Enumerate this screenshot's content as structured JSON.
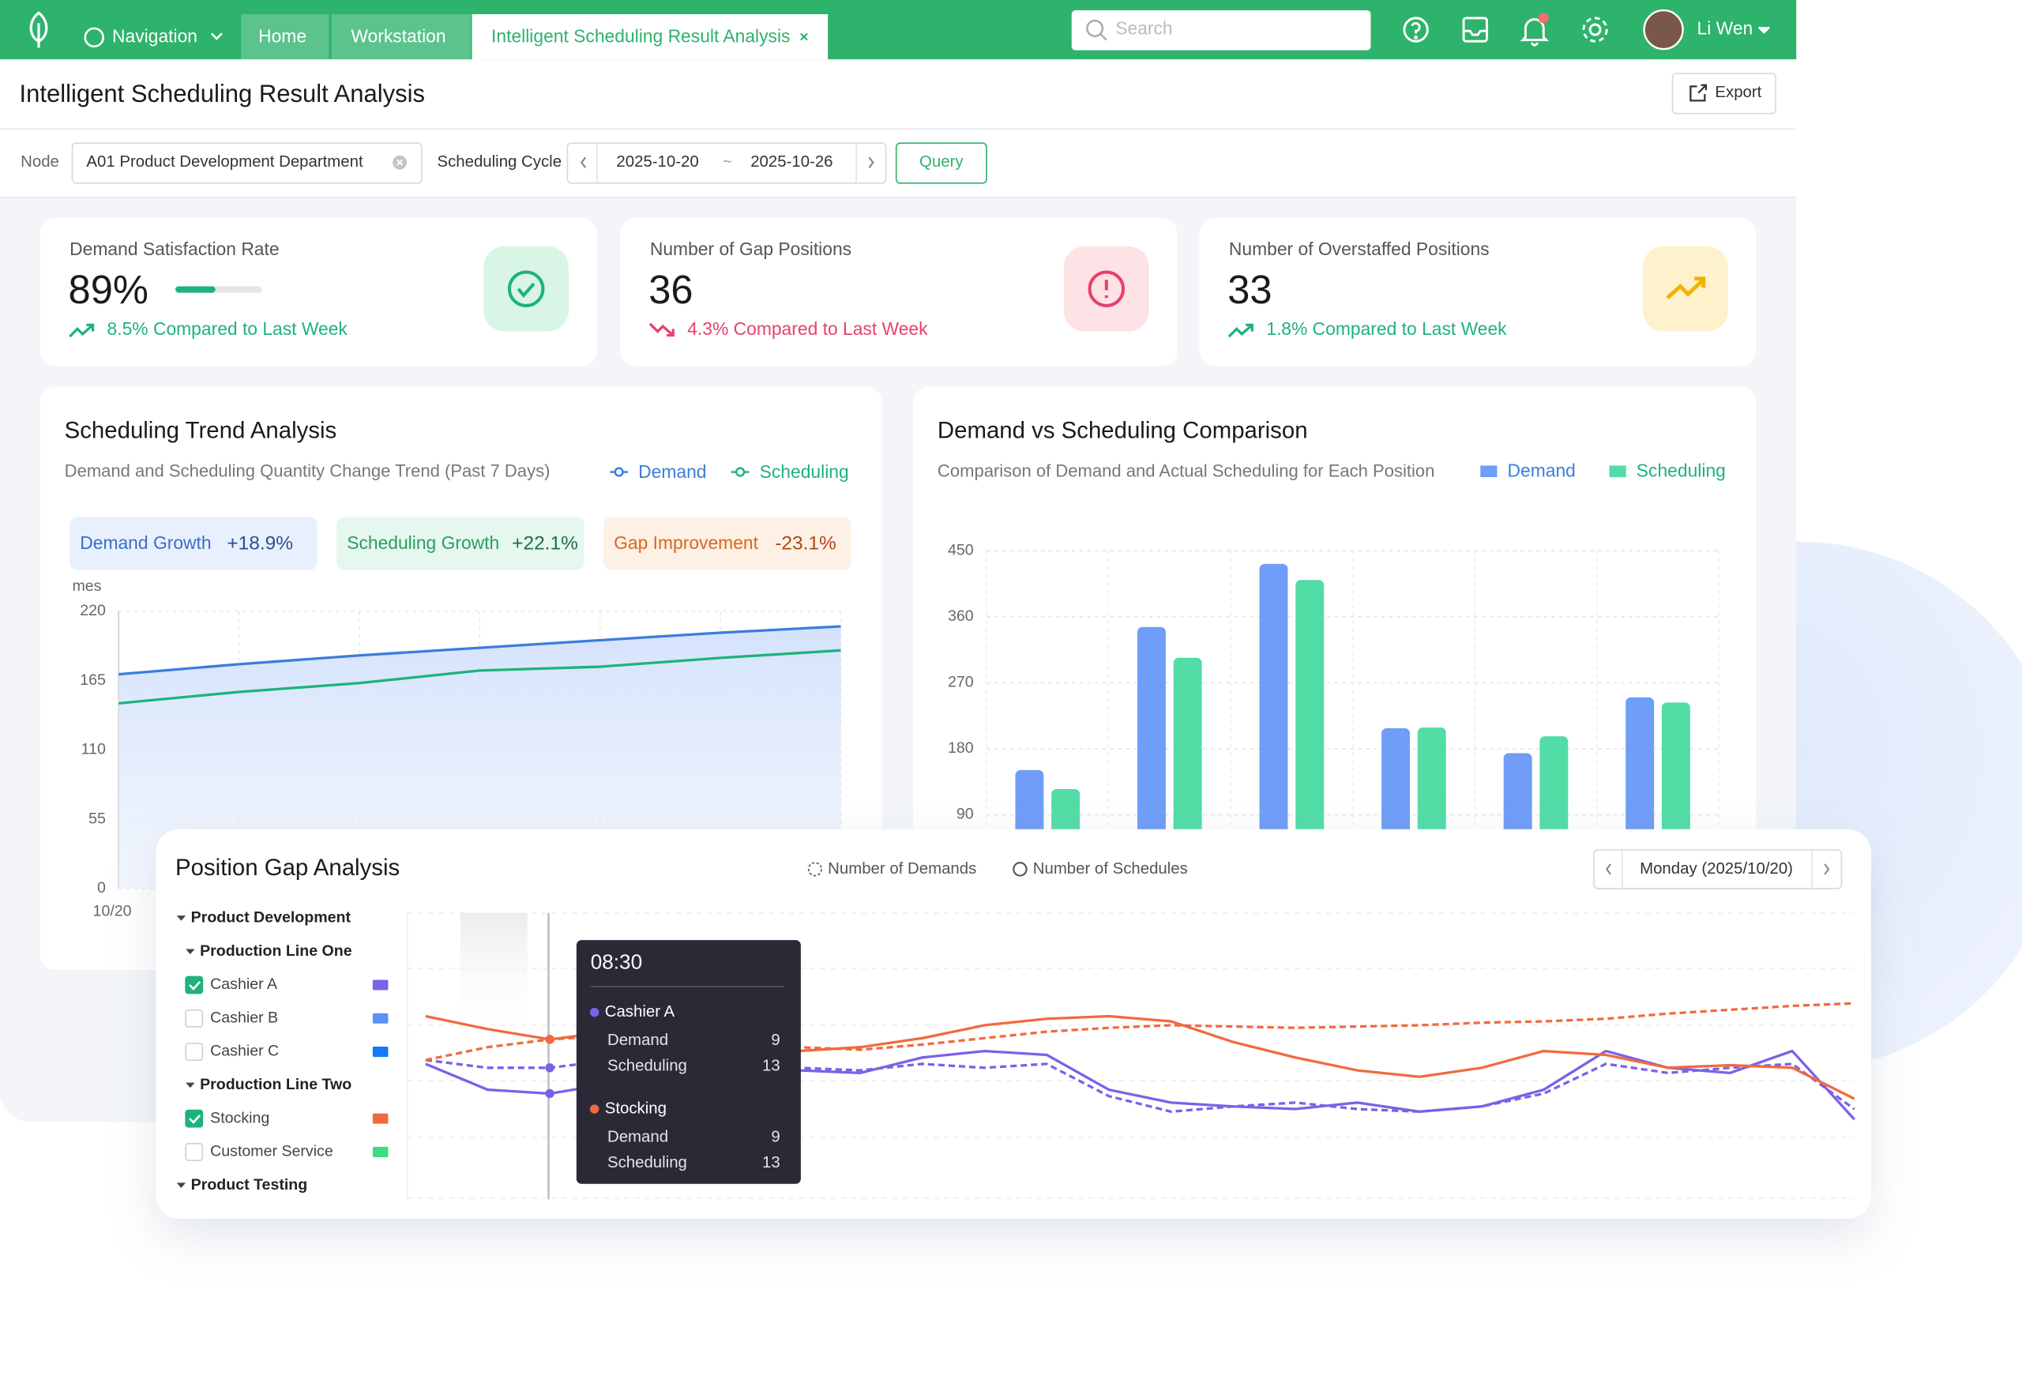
{
  "header": {
    "navigation": "Navigation",
    "tabs": [
      "Home",
      "Workstation",
      "Intelligent Scheduling Result Analysis"
    ],
    "search": "Search",
    "user": "Li Wen"
  },
  "page": {
    "title": "Intelligent Scheduling Result Analysis",
    "export": "Export"
  },
  "filters": {
    "node_label": "Node",
    "node": "A01 Product Development Department",
    "cycle_label": "Scheduling Cycle",
    "start": "2025-10-20",
    "separator": "~",
    "end": "2025-10-26",
    "query": "Query"
  },
  "kpis": [
    {
      "label": "Demand Satisfaction Rate",
      "value": "89%",
      "change": "8.5% Compared to Last Week",
      "color": "#1db37a"
    },
    {
      "label": "Number of Gap Positions",
      "value": "36",
      "change": "4.3% Compared to Last Week",
      "color": "#e8416b"
    },
    {
      "label": "Number of Overstaffed Positions",
      "value": "33",
      "change": "1.8% Compared to Last Week",
      "color": "#1db37a"
    }
  ],
  "chart_data": [
    {
      "type": "line",
      "title": "Scheduling Trend Analysis",
      "subtitle": "Demand and Scheduling Quantity Change Trend (Past 7 Days)",
      "y_label": "mes",
      "badges": [
        {
          "label": "Demand Growth",
          "value": "+18.9%"
        },
        {
          "label": "Scheduling Growth",
          "value": "+22.1%"
        },
        {
          "label": "Gap Improvement",
          "value": "-23.1%"
        }
      ],
      "categories": [
        "10/20",
        null,
        null,
        null,
        null,
        null,
        null
      ],
      "series": [
        {
          "name": "Demand",
          "color": "#3b7ddd",
          "values": [
            170,
            178,
            185,
            191,
            197,
            203,
            208
          ]
        },
        {
          "name": "Scheduling",
          "color": "#1db37a",
          "values": [
            147,
            156,
            163,
            173,
            176,
            183,
            189
          ]
        }
      ],
      "ylim": [
        0,
        220
      ],
      "yticks": [
        0,
        55,
        110,
        165,
        220
      ],
      "grid": true
    },
    {
      "type": "bar",
      "title": "Demand vs Scheduling Comparison",
      "subtitle": "Comparison of Demand and Actual Scheduling for Each Position",
      "categories": [
        null,
        null,
        null,
        null,
        null,
        null
      ],
      "series": [
        {
          "name": "Demand",
          "color": "#6f9df7",
          "values": [
            151,
            346,
            432,
            208,
            174,
            250
          ]
        },
        {
          "name": "Scheduling",
          "color": "#52dca6",
          "values": [
            125,
            304,
            410,
            209,
            197,
            243
          ]
        }
      ],
      "ylim": [
        0,
        450
      ],
      "yticks": [
        90,
        180,
        270,
        360,
        450
      ],
      "grid": true
    },
    {
      "type": "line",
      "title": "Position Gap Analysis",
      "legend": [
        "Number of Demands",
        "Number of Schedules"
      ],
      "date": "Monday (2025/10/20)",
      "tree": [
        {
          "label": "Product Development",
          "children": [
            {
              "label": "Production Line One",
              "children": [
                {
                  "label": "Cashier A",
                  "checked": true,
                  "color": "#7b61e8"
                },
                {
                  "label": "Cashier B",
                  "checked": false,
                  "color": "#5b8ff9"
                },
                {
                  "label": "Cashier C",
                  "checked": false,
                  "color": "#1677ff"
                }
              ]
            },
            {
              "label": "Production Line Two",
              "children": [
                {
                  "label": "Stocking",
                  "checked": true,
                  "color": "#f06a3f"
                },
                {
                  "label": "Customer Service",
                  "checked": false,
                  "color": "#3ddc84"
                }
              ]
            }
          ]
        },
        {
          "label": "Product Testing"
        }
      ],
      "tooltip": {
        "time": "08:30",
        "labels": [
          "Demand",
          "Scheduling"
        ]
      },
      "ylim": [
        0,
        222
      ],
      "series": [
        {
          "name": "Cashier A",
          "color": "#7b61e8",
          "tooltip_values": [
            9,
            13
          ],
          "demands": [
            108,
            102,
            102,
            108,
            115,
            108,
            102,
            100,
            105,
            102,
            105,
            80,
            68,
            72,
            75,
            70,
            68,
            72,
            82,
            105,
            98,
            102,
            105,
            70
          ],
          "schedules": [
            105,
            85,
            82,
            90,
            122,
            120,
            100,
            98,
            110,
            115,
            112,
            85,
            75,
            72,
            70,
            75,
            68,
            72,
            85,
            115,
            102,
            98,
            115,
            62
          ]
        },
        {
          "name": "Stocking",
          "color": "#f06a3f",
          "tooltip_values": [
            9,
            13
          ],
          "demands": [
            108,
            118,
            124,
            127,
            130,
            125,
            118,
            116,
            120,
            125,
            130,
            133,
            135,
            134,
            133,
            134,
            135,
            137,
            138,
            140,
            144,
            147,
            150,
            152
          ],
          "schedules": [
            142,
            132,
            124,
            130,
            134,
            125,
            115,
            118,
            125,
            135,
            140,
            142,
            138,
            122,
            110,
            100,
            95,
            102,
            115,
            112,
            102,
            104,
            102,
            78
          ]
        }
      ]
    }
  ]
}
